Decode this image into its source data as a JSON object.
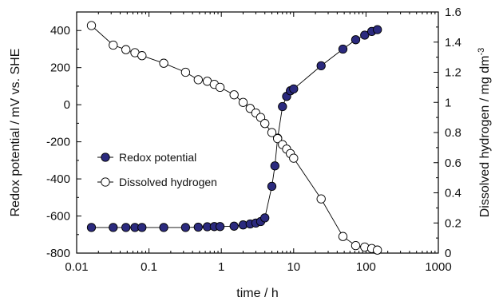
{
  "chart_data": {
    "type": "scatter",
    "x_scale": "log",
    "x_range": [
      0.01,
      1000
    ],
    "x_ticks": [
      "0.01",
      "0.1",
      "1",
      "10",
      "100",
      "1000"
    ],
    "xlabel": "time / h",
    "y_left": {
      "label": "Redox potential / mV vs. SHE",
      "range": [
        -800,
        500
      ],
      "ticks": [
        "400",
        "200",
        "0",
        "-200",
        "-400",
        "-600",
        "-800"
      ]
    },
    "y_right": {
      "label": "Dissolved hydrogen / mg dm",
      "label_sup": "-3",
      "range": [
        0,
        1.6
      ],
      "ticks": [
        "1.6",
        "1.4",
        "1.2",
        "1",
        "0.8",
        "0.6",
        "0.4",
        "0.2",
        "0"
      ]
    },
    "legend": {
      "placement": "center-left",
      "items": [
        "Redox potential",
        "Dissolved hydrogen"
      ]
    },
    "series": [
      {
        "name": "Redox potential",
        "axis": "left",
        "marker": "filled-circle",
        "color": "#2b2a7e",
        "points": [
          [
            0.016,
            -662
          ],
          [
            0.032,
            -662
          ],
          [
            0.048,
            -662
          ],
          [
            0.064,
            -662
          ],
          [
            0.08,
            -662
          ],
          [
            0.16,
            -662
          ],
          [
            0.32,
            -662
          ],
          [
            0.48,
            -660
          ],
          [
            0.64,
            -658
          ],
          [
            0.8,
            -657
          ],
          [
            0.96,
            -657
          ],
          [
            1.5,
            -655
          ],
          [
            2.0,
            -648
          ],
          [
            2.5,
            -643
          ],
          [
            3.0,
            -638
          ],
          [
            3.5,
            -630
          ],
          [
            4.0,
            -610
          ],
          [
            5.0,
            -440
          ],
          [
            5.5,
            -330
          ],
          [
            6.0,
            -180
          ],
          [
            7.0,
            -10
          ],
          [
            8.0,
            45
          ],
          [
            9.0,
            75
          ],
          [
            10.0,
            85
          ],
          [
            24.0,
            210
          ],
          [
            48.0,
            300
          ],
          [
            72.0,
            350
          ],
          [
            96.0,
            375
          ],
          [
            120.0,
            395
          ],
          [
            144.0,
            405
          ]
        ]
      },
      {
        "name": "Dissolved hydrogen",
        "axis": "right",
        "marker": "open-circle",
        "color": "#ffffff",
        "points": [
          [
            0.016,
            1.51
          ],
          [
            0.032,
            1.38
          ],
          [
            0.048,
            1.35
          ],
          [
            0.064,
            1.33
          ],
          [
            0.08,
            1.31
          ],
          [
            0.16,
            1.26
          ],
          [
            0.32,
            1.2
          ],
          [
            0.48,
            1.15
          ],
          [
            0.64,
            1.14
          ],
          [
            0.8,
            1.12
          ],
          [
            0.96,
            1.1
          ],
          [
            1.5,
            1.05
          ],
          [
            2.0,
            1.0
          ],
          [
            2.5,
            0.96
          ],
          [
            3.0,
            0.93
          ],
          [
            3.5,
            0.9
          ],
          [
            4.0,
            0.86
          ],
          [
            5.0,
            0.8
          ],
          [
            6.0,
            0.76
          ],
          [
            7.0,
            0.72
          ],
          [
            8.0,
            0.69
          ],
          [
            9.0,
            0.66
          ],
          [
            10.0,
            0.63
          ],
          [
            24.0,
            0.36
          ],
          [
            48.0,
            0.11
          ],
          [
            72.0,
            0.05
          ],
          [
            96.0,
            0.04
          ],
          [
            120.0,
            0.03
          ],
          [
            144.0,
            0.02
          ]
        ]
      }
    ]
  }
}
